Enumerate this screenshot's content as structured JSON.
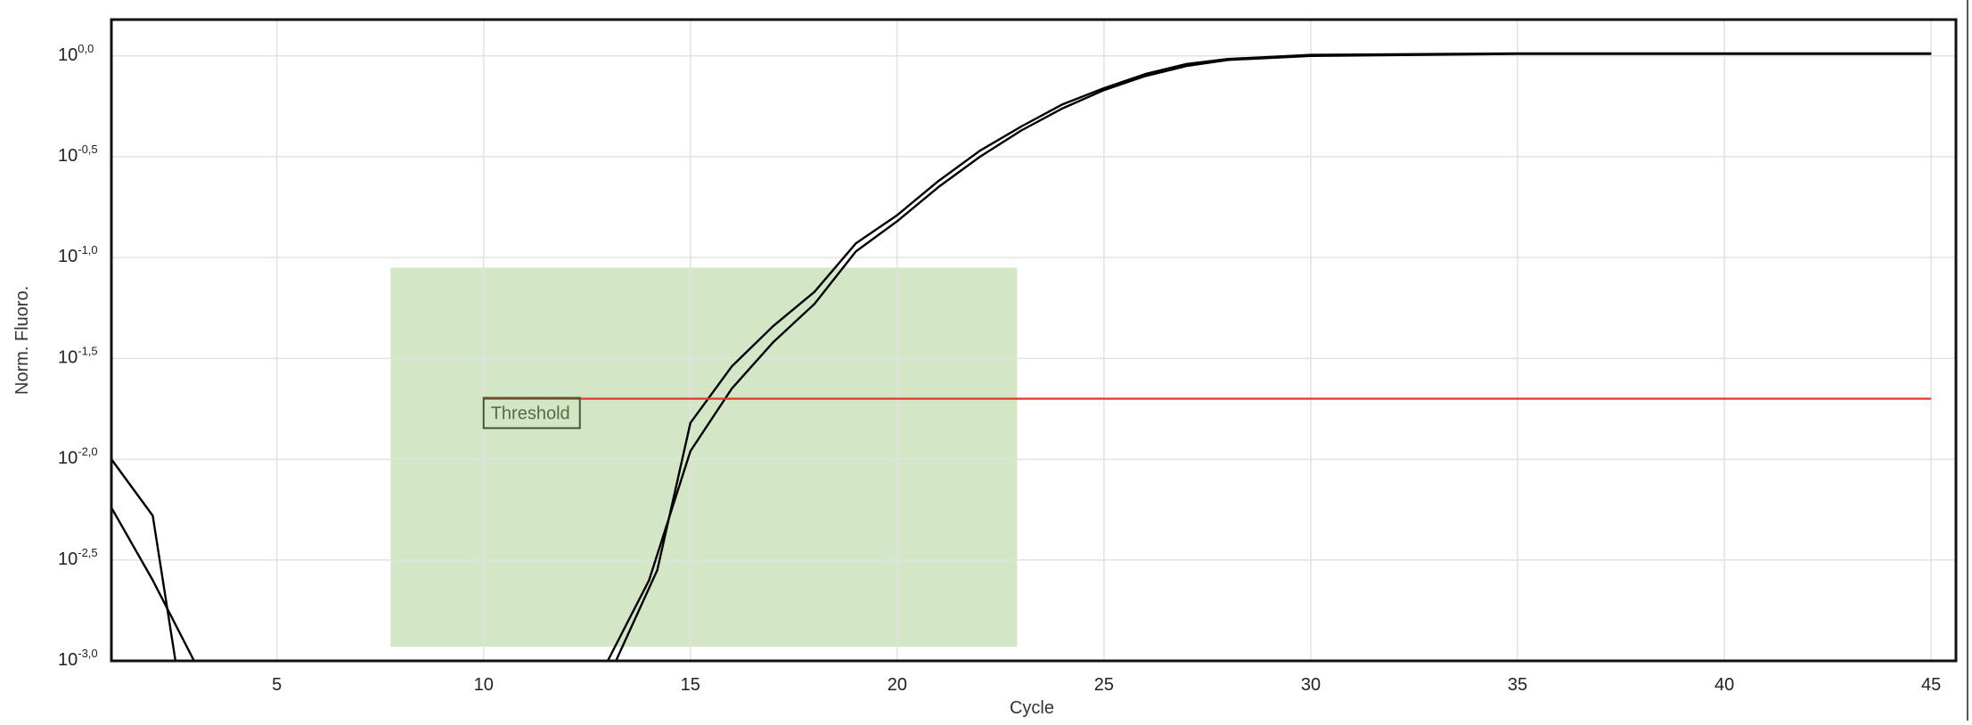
{
  "chart_data": {
    "type": "line",
    "xlabel": "Cycle",
    "ylabel": "Norm. Fluoro.",
    "x_scale": "linear",
    "y_scale": "log10",
    "xlim": [
      1,
      45.6
    ],
    "ylim_exponent": [
      -3.0,
      0.18
    ],
    "x_ticks": [
      5,
      10,
      15,
      20,
      25,
      30,
      35,
      40,
      45
    ],
    "y_ticks": [
      {
        "exp": -3.0,
        "base": "10",
        "sup": "-3,0"
      },
      {
        "exp": -2.5,
        "base": "10",
        "sup": "-2,5"
      },
      {
        "exp": -2.0,
        "base": "10",
        "sup": "-2,0"
      },
      {
        "exp": -1.5,
        "base": "10",
        "sup": "-1,5"
      },
      {
        "exp": -1.0,
        "base": "10",
        "sup": "-1,0"
      },
      {
        "exp": -0.5,
        "base": "10",
        "sup": "-0,5"
      },
      {
        "exp": 0.0,
        "base": "10",
        "sup": "0,0"
      }
    ],
    "grid": true,
    "threshold": {
      "label": "Threshold",
      "exponent": -1.7,
      "x_start": 10,
      "x_end": 45,
      "color": "#e0382a"
    },
    "highlight_region": {
      "x": [
        7.75,
        22.9
      ],
      "exponent": [
        -2.93,
        -1.05
      ],
      "color": "#d3e7c6"
    },
    "series": [
      {
        "color": "#000000",
        "points": [
          [
            13.0,
            -3.0
          ],
          [
            14.0,
            -2.6
          ],
          [
            15.0,
            -1.96
          ],
          [
            16.0,
            -1.65
          ],
          [
            17.0,
            -1.42
          ],
          [
            18.0,
            -1.23
          ],
          [
            19.0,
            -0.97
          ],
          [
            20.0,
            -0.82
          ],
          [
            21.0,
            -0.65
          ],
          [
            22.0,
            -0.5
          ],
          [
            23.0,
            -0.37
          ],
          [
            24.0,
            -0.26
          ],
          [
            25.0,
            -0.17
          ],
          [
            26.0,
            -0.1
          ],
          [
            27.0,
            -0.05
          ],
          [
            28.0,
            -0.02
          ],
          [
            30.0,
            0.0
          ],
          [
            35.0,
            0.01
          ],
          [
            40.0,
            0.01
          ],
          [
            45.0,
            0.01
          ]
        ]
      },
      {
        "color": "#000000",
        "points": [
          [
            13.2,
            -3.0
          ],
          [
            14.2,
            -2.55
          ],
          [
            15.0,
            -1.82
          ],
          [
            16.0,
            -1.54
          ],
          [
            17.0,
            -1.34
          ],
          [
            18.0,
            -1.17
          ],
          [
            19.0,
            -0.93
          ],
          [
            20.0,
            -0.79
          ],
          [
            21.0,
            -0.62
          ],
          [
            22.0,
            -0.47
          ],
          [
            23.0,
            -0.35
          ],
          [
            24.0,
            -0.24
          ],
          [
            25.0,
            -0.16
          ],
          [
            26.0,
            -0.09
          ],
          [
            27.0,
            -0.04
          ],
          [
            28.0,
            -0.015
          ],
          [
            30.0,
            0.005
          ],
          [
            35.0,
            0.012
          ],
          [
            40.0,
            0.012
          ],
          [
            45.0,
            0.012
          ]
        ]
      },
      {
        "color": "#000000",
        "points": [
          [
            1.0,
            -2.0
          ],
          [
            2.0,
            -2.28
          ],
          [
            2.55,
            -3.0
          ]
        ]
      },
      {
        "color": "#000000",
        "points": [
          [
            1.0,
            -2.24
          ],
          [
            2.0,
            -2.6
          ],
          [
            3.0,
            -3.0
          ]
        ]
      }
    ]
  }
}
